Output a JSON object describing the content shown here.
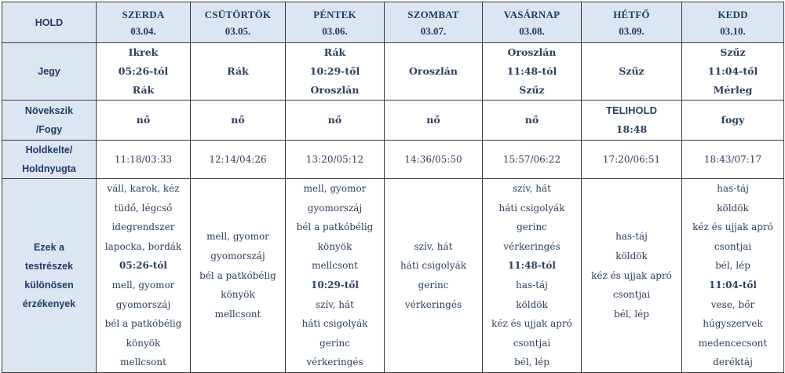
{
  "header": {
    "corner": "HOLD",
    "days": [
      {
        "day": "SZERDA",
        "date": "03.04."
      },
      {
        "day": "CSÜTÖRTÖK",
        "date": "03.05."
      },
      {
        "day": "PÉNTEK",
        "date": "03.06."
      },
      {
        "day": "SZOMBAT",
        "date": "03.07."
      },
      {
        "day": "VASÁRNAP",
        "date": "03.08."
      },
      {
        "day": "HÉTFŐ",
        "date": "03.09."
      },
      {
        "day": "KEDD",
        "date": "03.10."
      }
    ]
  },
  "rows": {
    "sign": {
      "label": "Jegy",
      "cells": [
        [
          "Ikrek",
          "05:26-tól",
          "Rák"
        ],
        [
          "Rák"
        ],
        [
          "Rák",
          "10:29-től",
          "Oroszlán"
        ],
        [
          "Oroszlán"
        ],
        [
          "Oroszlán",
          "11:48-tól",
          "Szűz"
        ],
        [
          "Szűz"
        ],
        [
          "Szűz",
          "11:04-től",
          "Mérleg"
        ]
      ]
    },
    "phase": {
      "label_1": "Növekszik",
      "label_2": "/Fogy",
      "cells": [
        [
          "nő"
        ],
        [
          "nő"
        ],
        [
          "nő"
        ],
        [
          "nő"
        ],
        [
          "nő"
        ],
        [
          "TELIHOLD",
          "18:48"
        ],
        [
          "fogy"
        ]
      ]
    },
    "rise": {
      "label_1": "Holdkelte/",
      "label_2": "Holdnyugta",
      "cells": [
        "11:18/03:33",
        "12:14/04:26",
        "13:20/05:12",
        "14:36/05:50",
        "15:57/06:22",
        "17:20/06:51",
        "18:43/07:17"
      ]
    },
    "body": {
      "label_1": "Ezek a",
      "label_2": "testrészek",
      "label_3": "különösen",
      "label_4": "érzékenyek",
      "cells": [
        [
          "váll, karok, kéz",
          "tüdő, légcső",
          "idegrendszer",
          "lapocka, bordák",
          "05:26-tól",
          "mell, gyomor",
          "gyomorszáj",
          "bél a patkóbélig",
          "könyök",
          "mellcsont"
        ],
        [
          "mell, gyomor",
          "gyomorszáj",
          "bél a patkóbélig",
          "könyök",
          "mellcsont"
        ],
        [
          "mell, gyomor",
          "gyomorszáj",
          "bél a patkóbélig",
          "könyök",
          "mellcsont",
          "10:29-től",
          "szív, hát",
          "háti csigolyák",
          "gerinc",
          "vérkeringés"
        ],
        [
          "szív, hát",
          "háti csigolyák",
          "gerinc",
          "vérkeringés"
        ],
        [
          "szív, hát",
          "háti csigolyák",
          "gerinc",
          "vérkeringés",
          "11:48-tól",
          "has-táj",
          "köldök",
          "kéz és ujjak apró",
          "csontjai",
          "bél, lép"
        ],
        [
          "has-táj",
          "köldök",
          "kéz és ujjak apró",
          "csontjai",
          "bél, lép"
        ],
        [
          "has-táj",
          "köldök",
          "kéz és ujjak apró",
          "csontjai",
          "bél, lép",
          "11:04-től",
          "vese, bőr",
          "húgyszervek",
          "medencecsont",
          "deréktáj"
        ]
      ]
    }
  }
}
